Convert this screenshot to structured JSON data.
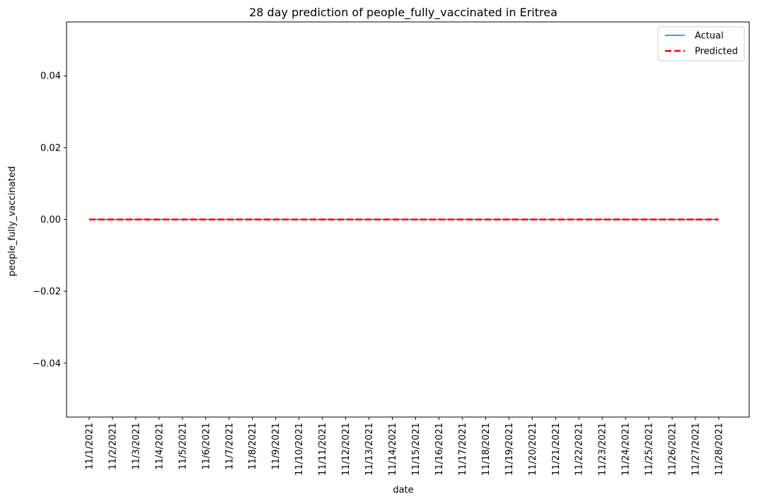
{
  "chart_data": {
    "type": "line",
    "title": "28 day prediction of people_fully_vaccinated in Eritrea",
    "xlabel": "date",
    "ylabel": "people_fully_vaccinated",
    "categories": [
      "11/1/2021",
      "11/2/2021",
      "11/3/2021",
      "11/4/2021",
      "11/5/2021",
      "11/6/2021",
      "11/7/2021",
      "11/8/2021",
      "11/9/2021",
      "11/10/2021",
      "11/11/2021",
      "11/12/2021",
      "11/13/2021",
      "11/14/2021",
      "11/15/2021",
      "11/16/2021",
      "11/17/2021",
      "11/18/2021",
      "11/19/2021",
      "11/20/2021",
      "11/21/2021",
      "11/22/2021",
      "11/23/2021",
      "11/24/2021",
      "11/25/2021",
      "11/26/2021",
      "11/27/2021",
      "11/28/2021"
    ],
    "ylim": [
      -0.055,
      0.055
    ],
    "yticks": [
      0.04,
      0.02,
      0.0,
      -0.02,
      -0.04
    ],
    "ytick_labels": [
      "0.04",
      "0.02",
      "0.00",
      "−0.02",
      "−0.04"
    ],
    "grid": false,
    "legend_position": "top-right",
    "series": [
      {
        "name": "Actual",
        "color": "#1f77b4",
        "style": "solid",
        "values": [
          0,
          0,
          0,
          0,
          0,
          0,
          0,
          0,
          0,
          0,
          0,
          0,
          0,
          0,
          0,
          0,
          0,
          0,
          0,
          0,
          0,
          0,
          0,
          0,
          0,
          0,
          0,
          0
        ]
      },
      {
        "name": "Predicted",
        "color": "#ff0000",
        "style": "dashed",
        "values": [
          0,
          0,
          0,
          0,
          0,
          0,
          0,
          0,
          0,
          0,
          0,
          0,
          0,
          0,
          0,
          0,
          0,
          0,
          0,
          0,
          0,
          0,
          0,
          0,
          0,
          0,
          0,
          0
        ]
      }
    ]
  }
}
